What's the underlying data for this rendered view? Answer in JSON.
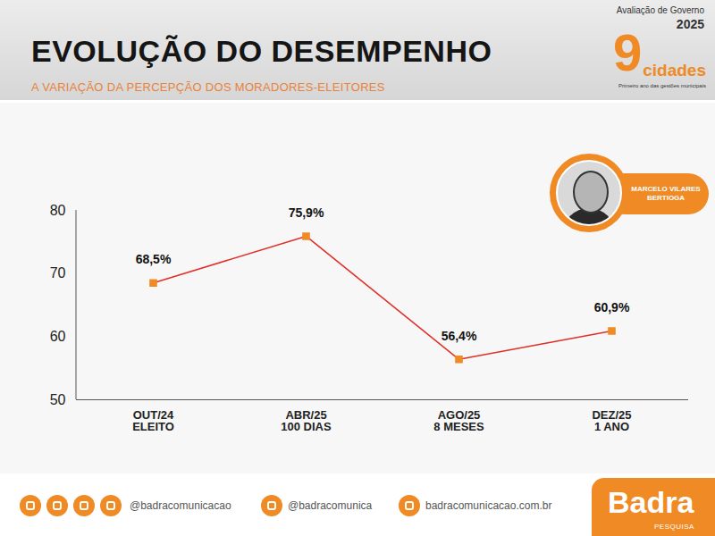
{
  "header": {
    "title": "EVOLUÇÃO DO DESEMPENHO",
    "subtitle": "A VARIAÇÃO DA PERCEPÇÃO DOS MORADORES-ELEITORES"
  },
  "logo": {
    "line1": "Avaliação de Governo",
    "year": "2025",
    "number": "9",
    "word": "cidades",
    "tagline": "Primeiro ano das gestões municipais"
  },
  "badge": {
    "name": "MARCELO VILARES",
    "city": "BERTIOGA"
  },
  "chart_data": {
    "type": "line",
    "categories": [
      "OUT/24\nELEITO",
      "ABR/25\n100 DIAS",
      "AGO/25\n8 MESES",
      "DEZ/25\n1 ANO"
    ],
    "values": [
      68.5,
      75.9,
      56.4,
      60.9
    ],
    "value_labels": [
      "68,5%",
      "75,9%",
      "56,4%",
      "60,9%"
    ],
    "color": "#e0302a",
    "marker": "square",
    "ylim": [
      50,
      80
    ],
    "yticks": [
      50,
      60,
      70,
      80
    ],
    "grid": false,
    "data_labels": true
  },
  "footer": {
    "handles": [
      "@badracomunicacao",
      "@badracomunica",
      "badracomunicacao.com.br"
    ],
    "brand": "Badra",
    "brand_sub": "PESQUISA"
  }
}
